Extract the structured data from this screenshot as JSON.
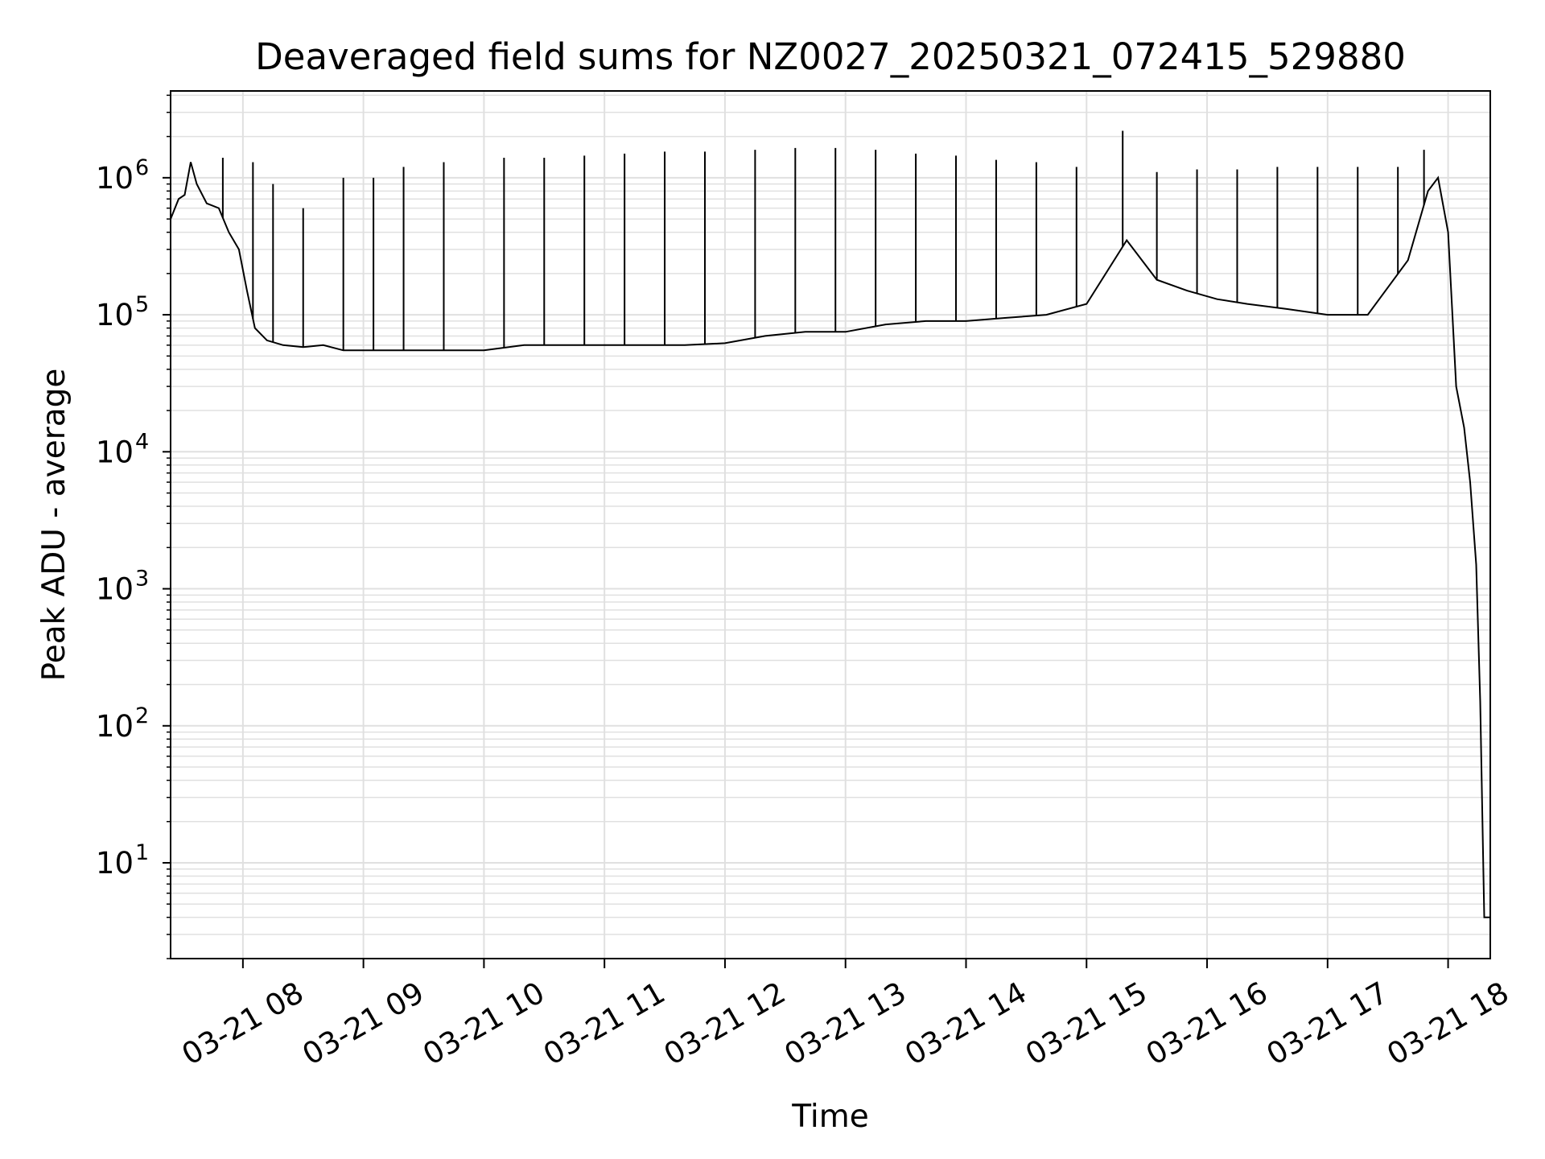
{
  "chart_data": {
    "type": "line",
    "title": "Deaveraged field sums for NZ0027_20250321_072415_529880",
    "xlabel": "Time",
    "ylabel": "Peak ADU - average",
    "yscale": "log",
    "ylim": [
      2,
      4300000
    ],
    "xlim": [
      "2025-03-21 07:24",
      "2025-03-21 18:21"
    ],
    "grid": true,
    "line_color": "#000000",
    "grid_color": "#e0e0e0",
    "x_ticks": [
      {
        "t": "2025-03-21 08:00",
        "label": "03-21 08"
      },
      {
        "t": "2025-03-21 09:00",
        "label": "03-21 09"
      },
      {
        "t": "2025-03-21 10:00",
        "label": "03-21 10"
      },
      {
        "t": "2025-03-21 11:00",
        "label": "03-21 11"
      },
      {
        "t": "2025-03-21 12:00",
        "label": "03-21 12"
      },
      {
        "t": "2025-03-21 13:00",
        "label": "03-21 13"
      },
      {
        "t": "2025-03-21 14:00",
        "label": "03-21 14"
      },
      {
        "t": "2025-03-21 15:00",
        "label": "03-21 15"
      },
      {
        "t": "2025-03-21 16:00",
        "label": "03-21 16"
      },
      {
        "t": "2025-03-21 17:00",
        "label": "03-21 17"
      },
      {
        "t": "2025-03-21 18:00",
        "label": "03-21 18"
      }
    ],
    "y_ticks": [
      {
        "value": 10,
        "base": "10",
        "exp": "1"
      },
      {
        "value": 100,
        "base": "10",
        "exp": "2"
      },
      {
        "value": 1000,
        "base": "10",
        "exp": "3"
      },
      {
        "value": 10000,
        "base": "10",
        "exp": "4"
      },
      {
        "value": 100000,
        "base": "10",
        "exp": "5"
      },
      {
        "value": 1000000,
        "base": "10",
        "exp": "6"
      }
    ],
    "series": [
      {
        "points": [
          [
            "2025-03-21 07:24",
            500000
          ],
          [
            "2025-03-21 07:28",
            700000
          ],
          [
            "2025-03-21 07:31",
            750000
          ],
          [
            "2025-03-21 07:34",
            1300000
          ],
          [
            "2025-03-21 07:37",
            900000
          ],
          [
            "2025-03-21 07:42",
            650000
          ],
          [
            "2025-03-21 07:48",
            600000
          ],
          [
            "2025-03-21 07:53",
            400000
          ],
          [
            "2025-03-21 07:58",
            300000
          ],
          [
            "2025-03-21 08:02",
            150000
          ],
          [
            "2025-03-21 08:06",
            80000
          ],
          [
            "2025-03-21 08:12",
            65000
          ],
          [
            "2025-03-21 08:20",
            60000
          ],
          [
            "2025-03-21 08:30",
            58000
          ],
          [
            "2025-03-21 08:40",
            60000
          ],
          [
            "2025-03-21 08:50",
            55000
          ],
          [
            "2025-03-21 09:00",
            55000
          ],
          [
            "2025-03-21 09:15",
            55000
          ],
          [
            "2025-03-21 09:30",
            55000
          ],
          [
            "2025-03-21 09:45",
            55000
          ],
          [
            "2025-03-21 10:00",
            55000
          ],
          [
            "2025-03-21 10:20",
            60000
          ],
          [
            "2025-03-21 10:40",
            60000
          ],
          [
            "2025-03-21 11:00",
            60000
          ],
          [
            "2025-03-21 11:20",
            60000
          ],
          [
            "2025-03-21 11:40",
            60000
          ],
          [
            "2025-03-21 12:00",
            62000
          ],
          [
            "2025-03-21 12:20",
            70000
          ],
          [
            "2025-03-21 12:40",
            75000
          ],
          [
            "2025-03-21 13:00",
            75000
          ],
          [
            "2025-03-21 13:20",
            85000
          ],
          [
            "2025-03-21 13:40",
            90000
          ],
          [
            "2025-03-21 14:00",
            90000
          ],
          [
            "2025-03-21 14:20",
            95000
          ],
          [
            "2025-03-21 14:40",
            100000
          ],
          [
            "2025-03-21 15:00",
            120000
          ],
          [
            "2025-03-21 15:20",
            350000
          ],
          [
            "2025-03-21 15:35",
            180000
          ],
          [
            "2025-03-21 15:50",
            150000
          ],
          [
            "2025-03-21 16:05",
            130000
          ],
          [
            "2025-03-21 16:20",
            120000
          ],
          [
            "2025-03-21 16:40",
            110000
          ],
          [
            "2025-03-21 17:00",
            100000
          ],
          [
            "2025-03-21 17:20",
            100000
          ],
          [
            "2025-03-21 17:40",
            250000
          ],
          [
            "2025-03-21 17:50",
            800000
          ],
          [
            "2025-03-21 17:55",
            1000000
          ],
          [
            "2025-03-21 18:00",
            400000
          ],
          [
            "2025-03-21 18:04",
            30000
          ],
          [
            "2025-03-21 18:08",
            15000
          ],
          [
            "2025-03-21 18:11",
            6000
          ],
          [
            "2025-03-21 18:14",
            1500
          ],
          [
            "2025-03-21 18:16",
            150
          ],
          [
            "2025-03-21 18:18",
            4
          ],
          [
            "2025-03-21 18:21",
            4
          ]
        ],
        "spikes": [
          [
            "2025-03-21 07:50",
            1400000
          ],
          [
            "2025-03-21 08:05",
            1300000
          ],
          [
            "2025-03-21 08:15",
            900000
          ],
          [
            "2025-03-21 08:30",
            600000
          ],
          [
            "2025-03-21 08:50",
            1000000
          ],
          [
            "2025-03-21 09:05",
            1000000
          ],
          [
            "2025-03-21 09:20",
            1200000
          ],
          [
            "2025-03-21 09:40",
            1300000
          ],
          [
            "2025-03-21 10:10",
            1400000
          ],
          [
            "2025-03-21 10:30",
            1400000
          ],
          [
            "2025-03-21 10:50",
            1450000
          ],
          [
            "2025-03-21 11:10",
            1500000
          ],
          [
            "2025-03-21 11:30",
            1550000
          ],
          [
            "2025-03-21 11:50",
            1550000
          ],
          [
            "2025-03-21 12:15",
            1600000
          ],
          [
            "2025-03-21 12:35",
            1650000
          ],
          [
            "2025-03-21 12:55",
            1650000
          ],
          [
            "2025-03-21 13:15",
            1600000
          ],
          [
            "2025-03-21 13:35",
            1500000
          ],
          [
            "2025-03-21 13:55",
            1450000
          ],
          [
            "2025-03-21 14:15",
            1350000
          ],
          [
            "2025-03-21 14:35",
            1300000
          ],
          [
            "2025-03-21 14:55",
            1200000
          ],
          [
            "2025-03-21 15:18",
            2200000
          ],
          [
            "2025-03-21 15:35",
            1100000
          ],
          [
            "2025-03-21 15:55",
            1150000
          ],
          [
            "2025-03-21 16:15",
            1150000
          ],
          [
            "2025-03-21 16:35",
            1200000
          ],
          [
            "2025-03-21 16:55",
            1200000
          ],
          [
            "2025-03-21 17:15",
            1200000
          ],
          [
            "2025-03-21 17:35",
            1200000
          ],
          [
            "2025-03-21 17:48",
            1600000
          ]
        ]
      }
    ]
  }
}
